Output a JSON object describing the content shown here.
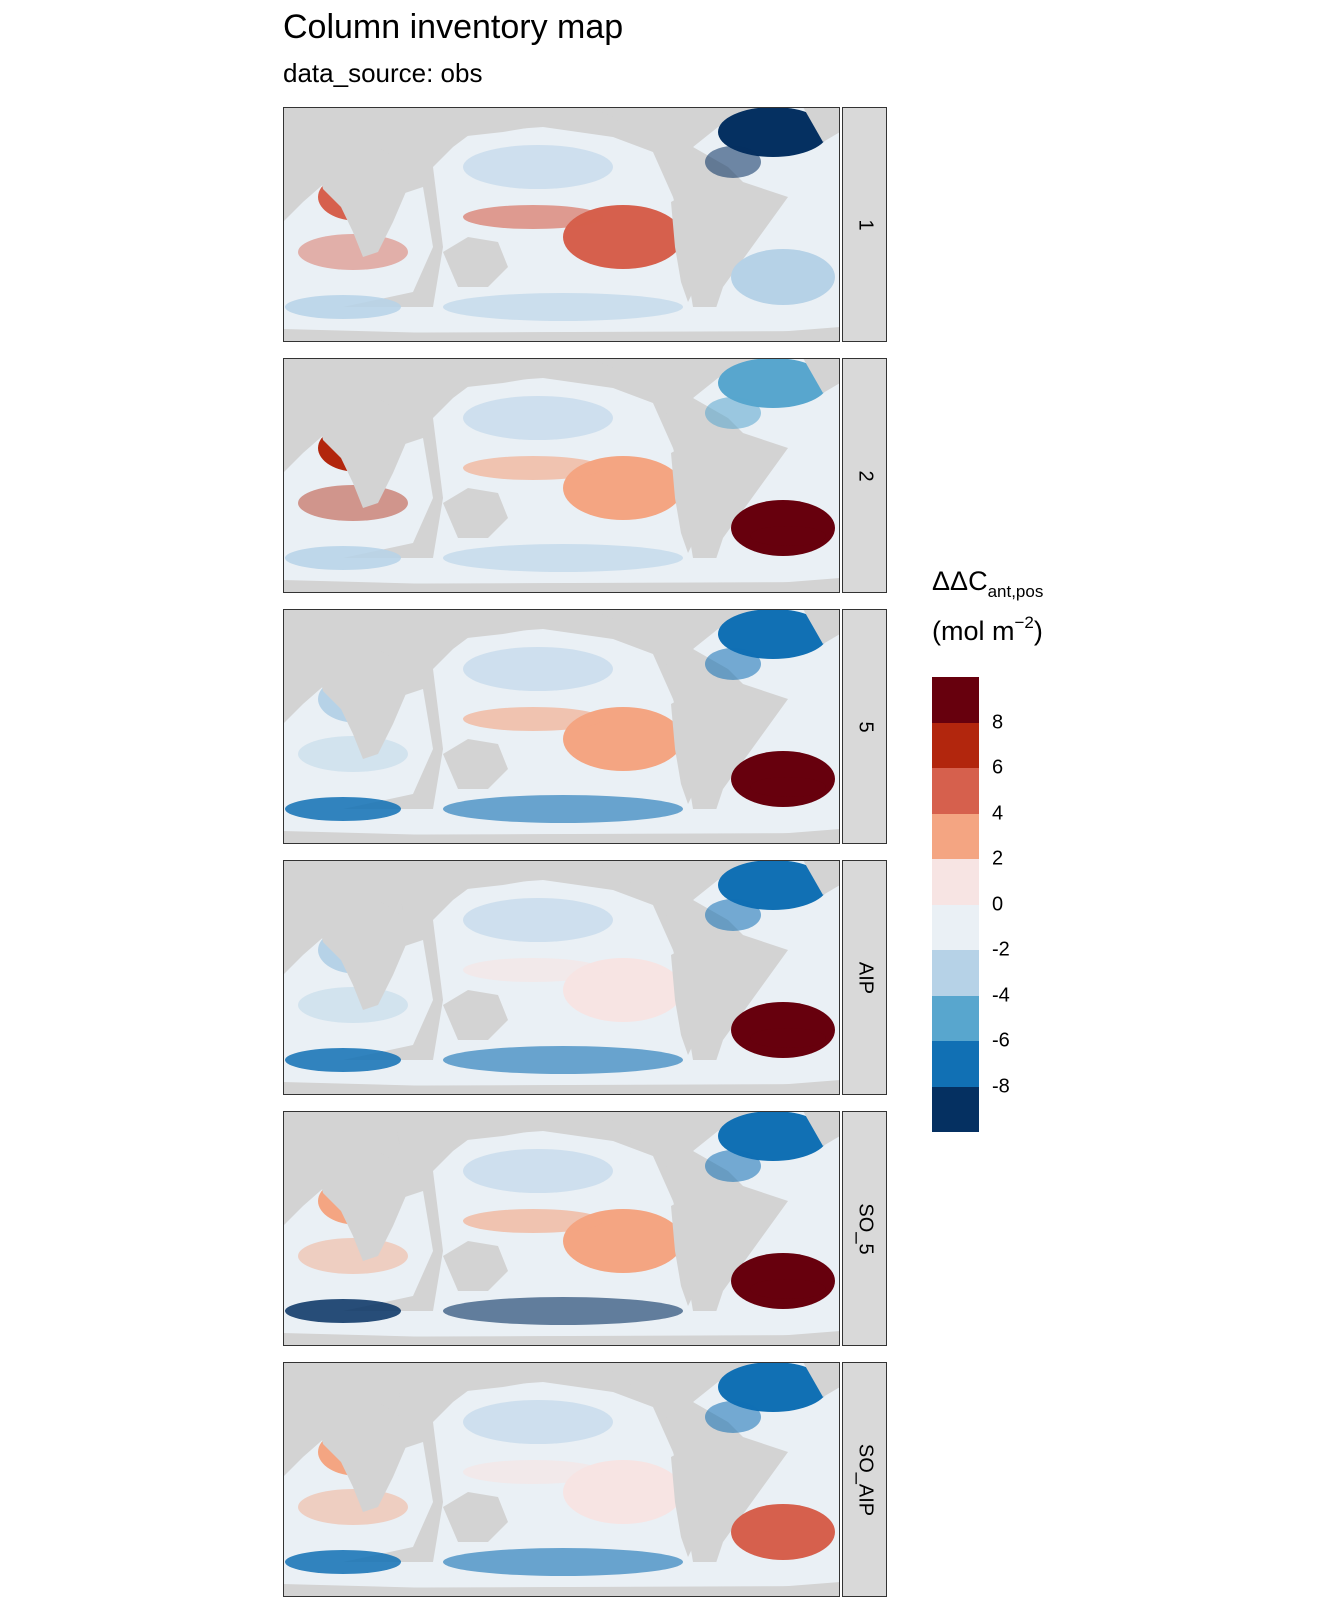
{
  "chart_data": {
    "type": "heatmap",
    "title": "Column inventory map",
    "subtitle": "data_source: obs",
    "facets": [
      "1",
      "2",
      "5",
      "AIP",
      "SO_5",
      "SO_AIP"
    ],
    "legend": {
      "title_main": "ΔΔC",
      "title_sub": "ant,pos",
      "unit_prefix": "(mol m",
      "unit_sup": "−2",
      "unit_suffix": ")",
      "placement": "right",
      "breaks": [
        8,
        6,
        4,
        2,
        0,
        -2,
        -4,
        -6,
        -8
      ],
      "tick_labels": [
        "8",
        "6",
        "4",
        "2",
        "0",
        "-2",
        "-4",
        "-6",
        "-8"
      ],
      "colors": [
        "#67000d",
        "#b2260d",
        "#d6604d",
        "#f4a582",
        "#f7e4e3",
        "#eaf0f5",
        "#b6d2e7",
        "#58a6ce",
        "#1170b4",
        "#053061"
      ]
    },
    "land_color": "#d3d3d3",
    "panel_colors": {
      "1": {
        "north_atlantic": "#053061",
        "indian": "#d6604d",
        "pacific_east": "#d6604d",
        "south_atlantic": "#b6d2e7",
        "southern": "#b6d2e7"
      },
      "2": {
        "north_atlantic": "#58a6ce",
        "indian": "#b2260d",
        "pacific_east": "#f4a582",
        "south_atlantic": "#67000d",
        "southern": "#b6d2e7"
      },
      "5": {
        "north_atlantic": "#1170b4",
        "indian": "#b6d2e7",
        "pacific_east": "#f4a582",
        "south_atlantic": "#67000d",
        "southern": "#1170b4"
      },
      "AIP": {
        "north_atlantic": "#1170b4",
        "indian": "#b6d2e7",
        "pacific_east": "#f7e4e3",
        "south_atlantic": "#67000d",
        "southern": "#1170b4"
      },
      "SO_5": {
        "north_atlantic": "#1170b4",
        "indian": "#f4a582",
        "pacific_east": "#f4a582",
        "south_atlantic": "#67000d",
        "southern": "#053061"
      },
      "SO_AIP": {
        "north_atlantic": "#1170b4",
        "indian": "#f4a582",
        "pacific_east": "#f7e4e3",
        "south_atlantic": "#d6604d",
        "southern": "#1170b4"
      }
    }
  }
}
